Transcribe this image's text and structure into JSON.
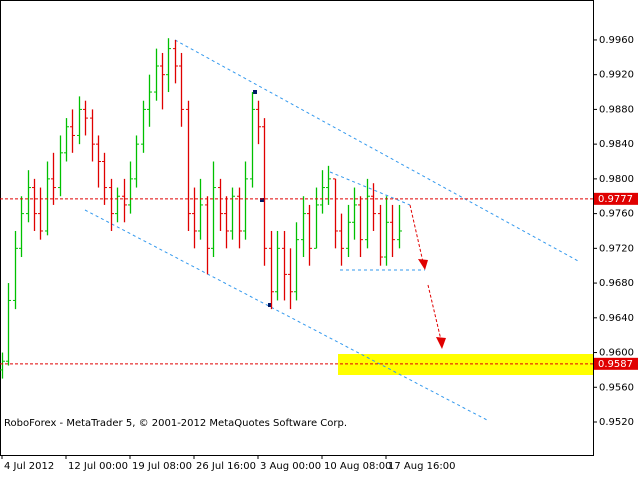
{
  "chart_data": {
    "type": "ohlc",
    "footer": "RoboForex - MetaTrader 5, © 2001-2012 MetaQuotes Software Corp.",
    "up_color": "#00c000",
    "down_color": "#e00000",
    "x": [
      0,
      1,
      2,
      3,
      4,
      5,
      6,
      7,
      8,
      9,
      10,
      11,
      12,
      13,
      14,
      15,
      16,
      17,
      18,
      19,
      20,
      21,
      22,
      23,
      24,
      25,
      26,
      27,
      28,
      29,
      30,
      31,
      32,
      33,
      34,
      35,
      36,
      37,
      38,
      39,
      40,
      41,
      42,
      43,
      44,
      45,
      46,
      47,
      48,
      49,
      50,
      51,
      52,
      53,
      54,
      55,
      56,
      57,
      58,
      59,
      60,
      61,
      62
    ],
    "open": [
      0.958,
      0.959,
      0.966,
      0.972,
      0.976,
      0.979,
      0.976,
      0.974,
      0.98,
      0.979,
      0.983,
      0.986,
      0.985,
      0.988,
      0.987,
      0.984,
      0.982,
      0.979,
      0.976,
      0.978,
      0.977,
      0.98,
      0.984,
      0.988,
      0.99,
      0.993,
      0.992,
      0.995,
      0.993,
      0.988,
      0.976,
      0.974,
      0.977,
      0.972,
      0.979,
      0.976,
      0.974,
      0.978,
      0.974,
      0.98,
      0.988,
      0.986,
      0.972,
      0.967,
      0.972,
      0.969,
      0.967,
      0.973,
      0.976,
      0.972,
      0.977,
      0.979,
      0.98,
      0.974,
      0.972,
      0.975,
      0.977,
      0.973,
      0.978,
      0.976,
      0.971,
      0.975,
      0.973
    ],
    "high": [
      0.96,
      0.968,
      0.974,
      0.978,
      0.981,
      0.98,
      0.979,
      0.982,
      0.983,
      0.985,
      0.987,
      0.988,
      0.9895,
      0.989,
      0.988,
      0.985,
      0.983,
      0.98,
      0.979,
      0.98,
      0.982,
      0.985,
      0.989,
      0.992,
      0.995,
      0.9945,
      0.9962,
      0.996,
      0.9945,
      0.989,
      0.979,
      0.98,
      0.978,
      0.982,
      0.98,
      0.978,
      0.979,
      0.979,
      0.982,
      0.99,
      0.989,
      0.987,
      0.974,
      0.974,
      0.974,
      0.972,
      0.975,
      0.978,
      0.977,
      0.979,
      0.981,
      0.9815,
      0.98,
      0.976,
      0.977,
      0.979,
      0.978,
      0.98,
      0.9795,
      0.977,
      0.978,
      0.977,
      0.977
    ],
    "low": [
      0.957,
      0.9585,
      0.965,
      0.971,
      0.975,
      0.974,
      0.973,
      0.9735,
      0.977,
      0.978,
      0.982,
      0.983,
      0.984,
      0.985,
      0.982,
      0.979,
      0.977,
      0.974,
      0.975,
      0.975,
      0.976,
      0.979,
      0.983,
      0.986,
      0.989,
      0.988,
      0.99,
      0.991,
      0.986,
      0.974,
      0.972,
      0.973,
      0.969,
      0.971,
      0.974,
      0.972,
      0.973,
      0.972,
      0.973,
      0.979,
      0.984,
      0.97,
      0.965,
      0.966,
      0.966,
      0.965,
      0.966,
      0.971,
      0.97,
      0.972,
      0.976,
      0.977,
      0.972,
      0.97,
      0.971,
      0.973,
      0.971,
      0.972,
      0.974,
      0.97,
      0.97,
      0.971,
      0.972
    ],
    "close": [
      0.959,
      0.966,
      0.972,
      0.976,
      0.979,
      0.976,
      0.974,
      0.98,
      0.979,
      0.983,
      0.986,
      0.985,
      0.988,
      0.987,
      0.984,
      0.982,
      0.979,
      0.976,
      0.978,
      0.977,
      0.98,
      0.984,
      0.988,
      0.99,
      0.993,
      0.992,
      0.995,
      0.993,
      0.988,
      0.976,
      0.974,
      0.977,
      0.972,
      0.979,
      0.976,
      0.974,
      0.978,
      0.974,
      0.98,
      0.988,
      0.986,
      0.972,
      0.967,
      0.972,
      0.969,
      0.967,
      0.973,
      0.976,
      0.972,
      0.977,
      0.979,
      0.98,
      0.974,
      0.972,
      0.975,
      0.977,
      0.973,
      0.978,
      0.976,
      0.971,
      0.975,
      0.973,
      0.974
    ],
    "xlim": [
      -0.3125,
      92.34375
    ],
    "xticks": [
      {
        "value": 0,
        "label": "4 Jul 2012"
      },
      {
        "value": 10,
        "label": "12 Jul 00:00"
      },
      {
        "value": 20,
        "label": "19 Jul 08:00"
      },
      {
        "value": 30,
        "label": "26 Jul 16:00"
      },
      {
        "value": 40,
        "label": "3 Aug 00:00"
      },
      {
        "value": 50,
        "label": "10 Aug 08:00"
      },
      {
        "value": 60,
        "label": "17 Aug 16:00"
      }
    ],
    "ylim": [
      0.9482,
      1.0006
    ],
    "yticks": [
      {
        "value": 0.996,
        "label": "0.9960"
      },
      {
        "value": 0.992,
        "label": "0.9920"
      },
      {
        "value": 0.988,
        "label": "0.9880"
      },
      {
        "value": 0.984,
        "label": "0.9840"
      },
      {
        "value": 0.98,
        "label": "0.9800"
      },
      {
        "value": 0.976,
        "label": "0.9760"
      },
      {
        "value": 0.972,
        "label": "0.9720"
      },
      {
        "value": 0.968,
        "label": "0.9680"
      },
      {
        "value": 0.964,
        "label": "0.9640"
      },
      {
        "value": 0.96,
        "label": "0.9600"
      },
      {
        "value": 0.956,
        "label": "0.9560"
      },
      {
        "value": 0.952,
        "label": "0.9520"
      }
    ],
    "levels": [
      0.9777,
      0.9587
    ],
    "level_color": "#e00000"
  }
}
